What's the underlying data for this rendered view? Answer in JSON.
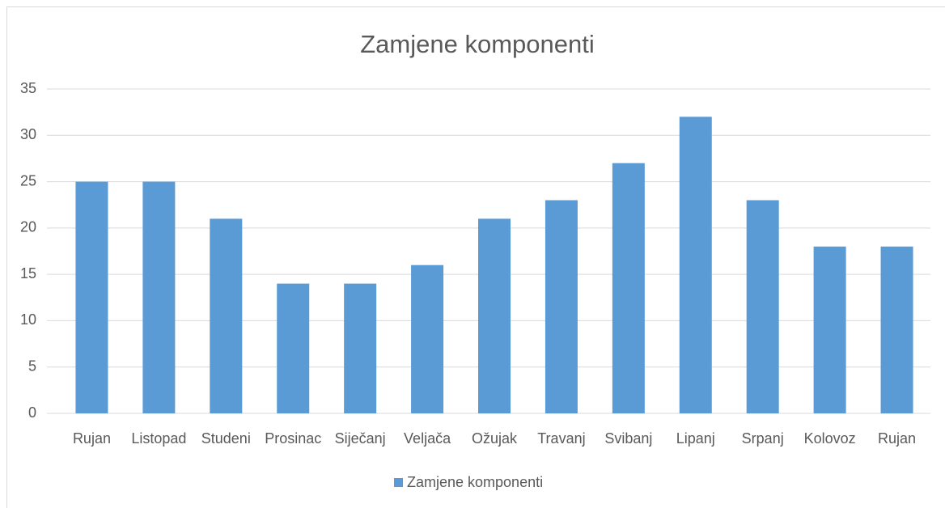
{
  "chart_data": {
    "type": "bar",
    "title": "Zamjene komponenti",
    "categories": [
      "Rujan",
      "Listopad",
      "Studeni",
      "Prosinac",
      "Siječanj",
      "Veljača",
      "Ožujak",
      "Travanj",
      "Svibanj",
      "Lipanj",
      "Srpanj",
      "Kolovoz",
      "Rujan"
    ],
    "series": [
      {
        "name": "Zamjene komponenti",
        "color": "#5b9bd5",
        "values": [
          25,
          25,
          21,
          14,
          14,
          16,
          21,
          23,
          27,
          32,
          23,
          18,
          18
        ]
      }
    ],
    "ylim": [
      0,
      35
    ],
    "yticks": [
      0,
      5,
      10,
      15,
      20,
      25,
      30,
      35
    ],
    "grid": true,
    "legend": "bottom"
  }
}
